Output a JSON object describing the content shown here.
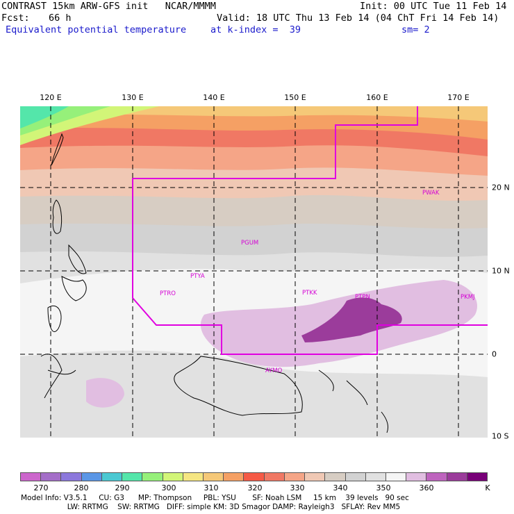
{
  "header": {
    "title": "CONTRAST 15km ARW-GFS init   NCAR/MMMM",
    "init": "Init: 00 UTC Tue 11 Feb 14",
    "fcst_label": "Fcst:",
    "fcst_value": "66 h",
    "valid": "Valid: 18 UTC Thu 13 Feb 14 (04 ChT Fri 14 Feb 14)",
    "field": "Equivalent potential temperature",
    "level": "at k-index =  39",
    "smooth": "sm= 2"
  },
  "axes": {
    "lon_labels": [
      "120 E",
      "130 E",
      "140 E",
      "150 E",
      "160 E",
      "170 E"
    ],
    "lat_labels": [
      "20 N",
      "10 N",
      "0",
      "10 S"
    ]
  },
  "stations": [
    "PWAK",
    "PGUM",
    "PTYA",
    "PTRO",
    "PTKK",
    "PTPN",
    "PKMJ",
    "AYMO"
  ],
  "colorbar": {
    "colors": [
      "#cc66cc",
      "#a46ec8",
      "#8c78dc",
      "#5a96e6",
      "#4ac8d2",
      "#54e6aa",
      "#96f07a",
      "#d2f578",
      "#f5e682",
      "#f5c878",
      "#f5a064",
      "#f55a46",
      "#f07864",
      "#f5a587",
      "#f0c8b4",
      "#d7cdc3",
      "#d2d2d2",
      "#e1e1e1",
      "#f5f5f5",
      "#e1bee1",
      "#be64be",
      "#9b3c9b",
      "#780078"
    ],
    "ticks": [
      "270",
      "280",
      "290",
      "300",
      "310",
      "320",
      "330",
      "340",
      "350",
      "360",
      "K"
    ]
  },
  "footer": {
    "line1": "Model Info: V3.5.1     CU: G3      MP: Thompson     PBL: YSU       SF: Noah LSM     15 km    39 levels   90 sec",
    "line2": "                    LW: RRTMG    SW: RRTMG   DIFF: simple KM: 3D Smagor DAMP: Rayleigh3   SFLAY: Rev MM5"
  }
}
